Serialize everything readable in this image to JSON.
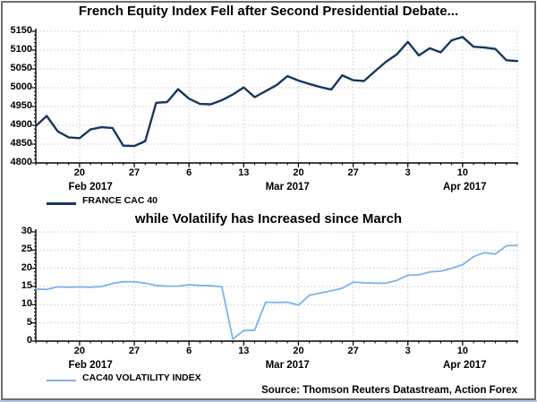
{
  "source": "Source: Thomson Reuters Datastream, Action Forex",
  "chart_data": [
    {
      "type": "line",
      "title": "French Equity Index Fell after Second Presidential Debate...",
      "legend": "FRANCE CAC 40",
      "line_color": "#17375E",
      "grid": true,
      "legend_position": "bottom-left",
      "ylim": [
        4800,
        5150
      ],
      "yticks": [
        4800,
        4850,
        4900,
        4950,
        5000,
        5050,
        5100,
        5150
      ],
      "y_minor_step": 10,
      "xticks": [
        {
          "label": "20",
          "idx": 4
        },
        {
          "label": "27",
          "idx": 9
        },
        {
          "label": "6",
          "idx": 14
        },
        {
          "label": "13",
          "idx": 19
        },
        {
          "label": "20",
          "idx": 24
        },
        {
          "label": "27",
          "idx": 29
        },
        {
          "label": "3",
          "idx": 34
        },
        {
          "label": "10",
          "idx": 39
        }
      ],
      "month_labels": [
        {
          "label": "Feb 2017",
          "idx": 5
        },
        {
          "label": "Mar 2017",
          "idx": 23
        },
        {
          "label": "Apr 2017",
          "idx": 39.2
        }
      ],
      "values": [
        4898,
        4925,
        4884,
        4868,
        4866,
        4889,
        4895,
        4893,
        4846,
        4845,
        4858,
        4960,
        4962,
        4996,
        4971,
        4957,
        4956,
        4967,
        4982,
        5001,
        4975,
        4991,
        5007,
        5031,
        5019,
        5010,
        5002,
        4995,
        5033,
        5020,
        5018,
        5044,
        5069,
        5089,
        5122,
        5086,
        5105,
        5094,
        5126,
        5135,
        5109,
        5107,
        5103,
        5073,
        5071
      ]
    },
    {
      "type": "line",
      "title": "while Volatilify has Increased since March",
      "legend": "CAC40 VOLATILITY INDEX",
      "line_color": "#7FB2E5",
      "grid": true,
      "legend_position": "bottom-left",
      "ylim": [
        0,
        30
      ],
      "yticks": [
        0,
        5,
        10,
        15,
        20,
        25,
        30
      ],
      "y_minor_step": 1,
      "xticks": [
        {
          "label": "20",
          "idx": 4
        },
        {
          "label": "27",
          "idx": 9
        },
        {
          "label": "6",
          "idx": 14
        },
        {
          "label": "13",
          "idx": 19
        },
        {
          "label": "20",
          "idx": 24
        },
        {
          "label": "27",
          "idx": 29
        },
        {
          "label": "3",
          "idx": 34
        },
        {
          "label": "10",
          "idx": 39
        }
      ],
      "month_labels": [
        {
          "label": "Feb 2017",
          "idx": 5
        },
        {
          "label": "Mar 2017",
          "idx": 23
        },
        {
          "label": "Apr 2017",
          "idx": 39.2
        }
      ],
      "values": [
        14.3,
        14.2,
        14.9,
        14.8,
        14.9,
        14.8,
        15.0,
        15.8,
        16.3,
        16.3,
        15.9,
        15.3,
        15.1,
        15.1,
        15.5,
        15.3,
        15.2,
        14.9,
        0.6,
        2.9,
        3.0,
        10.7,
        10.6,
        10.7,
        9.9,
        12.6,
        13.2,
        13.8,
        14.5,
        16.2,
        16.0,
        15.9,
        15.9,
        16.7,
        18.1,
        18.2,
        19.0,
        19.2,
        20.0,
        21.0,
        23.2,
        24.3,
        23.9,
        26.2,
        26.3
      ]
    }
  ]
}
